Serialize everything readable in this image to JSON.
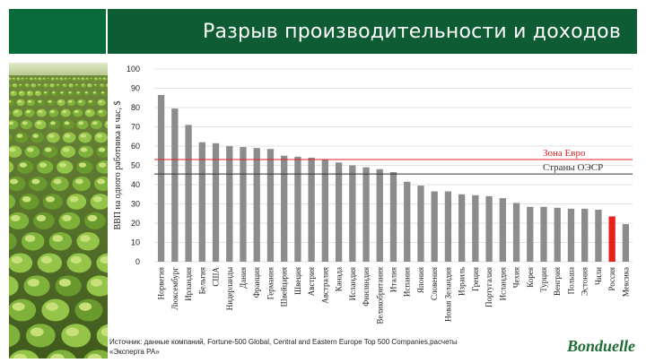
{
  "title": "Разрыв производительности и доходов",
  "source_note": "Источник: данные компаний, Fortune-500 Global, Central and Eastern Europe Top 500 Companies,расчеты «Эксперта РА»",
  "logo_text": "Bonduelle",
  "colors": {
    "title_bar": "#0d5c33",
    "bar": "#8c8c8c",
    "highlight_bar": "#e8201c",
    "euro_line": "#e02020",
    "oecd_line": "#333333",
    "logo": "#1f6b33"
  },
  "chart_data": {
    "type": "bar",
    "ylabel": "ВВП на одного работника в час, $",
    "ylim": [
      0,
      100
    ],
    "yticks": [
      0,
      10,
      20,
      30,
      40,
      50,
      60,
      70,
      80,
      90,
      100
    ],
    "grid": true,
    "categories": [
      "Норвегия",
      "Люксембург",
      "Ирландия",
      "Бельгия",
      "США",
      "Нидерланды",
      "Дания",
      "Франция",
      "Германия",
      "Швейцария",
      "Швеция",
      "Австрия",
      "Австралия",
      "Канада",
      "Исландия",
      "Финляндия",
      "Великобритания",
      "Италия",
      "Испания",
      "Япония",
      "Словения",
      "Новая Зеландия",
      "Израиль",
      "Греция",
      "Португалия",
      "Исландия",
      "Чехия",
      "Корея",
      "Турция",
      "Венгрия",
      "Польша",
      "Эстония",
      "Чили",
      "Россия",
      "Мексика"
    ],
    "values": [
      86.5,
      79.5,
      71,
      62,
      61.5,
      60,
      59.5,
      59,
      58.5,
      55,
      54.5,
      54,
      53,
      51.5,
      50,
      49,
      48,
      46.5,
      41.5,
      39.5,
      36.5,
      36.5,
      35,
      34.5,
      34,
      33,
      30.5,
      28.5,
      28.5,
      28,
      27.5,
      27.5,
      27,
      23.5,
      19.5
    ],
    "highlight_index": 33,
    "reference_lines": [
      {
        "label": "Зона Евро",
        "value": 53
      },
      {
        "label": "Страны ОЭСР",
        "value": 45.5
      }
    ]
  }
}
